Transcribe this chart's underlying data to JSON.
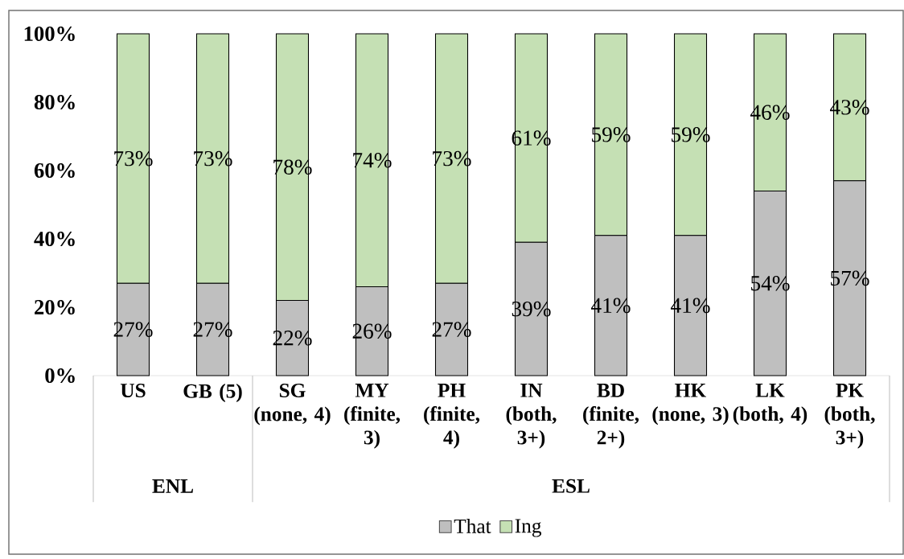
{
  "chart_data": {
    "type": "bar",
    "stacked": true,
    "categories": [
      "US",
      "GB (5)",
      "SG (none, 4)",
      "MY (finite, 3)",
      "PH (finite, 4)",
      "IN (both, 3+)",
      "BD (finite, 2+)",
      "HK (none, 3)",
      "LK (both, 4)",
      "PK (both, 3+)"
    ],
    "series": [
      {
        "name": "That",
        "color": "#bfbfbf",
        "values": [
          27,
          27,
          22,
          26,
          27,
          39,
          41,
          41,
          54,
          57
        ],
        "value_labels": [
          "27%",
          "27%",
          "22%",
          "26%",
          "27%",
          "39%",
          "41%",
          "41%",
          "54%",
          "57%"
        ]
      },
      {
        "name": "Ing",
        "color": "#c5e0b4",
        "values": [
          73,
          73,
          78,
          74,
          73,
          61,
          59,
          59,
          46,
          43
        ],
        "value_labels": [
          "73%",
          "73%",
          "78%",
          "74%",
          "73%",
          "61%",
          "59%",
          "59%",
          "46%",
          "43%"
        ]
      }
    ],
    "ylim": [
      0,
      100
    ],
    "yticks": [
      {
        "value": 0,
        "label": "0%"
      },
      {
        "value": 20,
        "label": "20%"
      },
      {
        "value": 40,
        "label": "40%"
      },
      {
        "value": 60,
        "label": "60%"
      },
      {
        "value": 80,
        "label": "80%"
      },
      {
        "value": 100,
        "label": "100%"
      }
    ],
    "legend": "bottom",
    "annotations": [
      "ENL",
      "ESL"
    ]
  }
}
